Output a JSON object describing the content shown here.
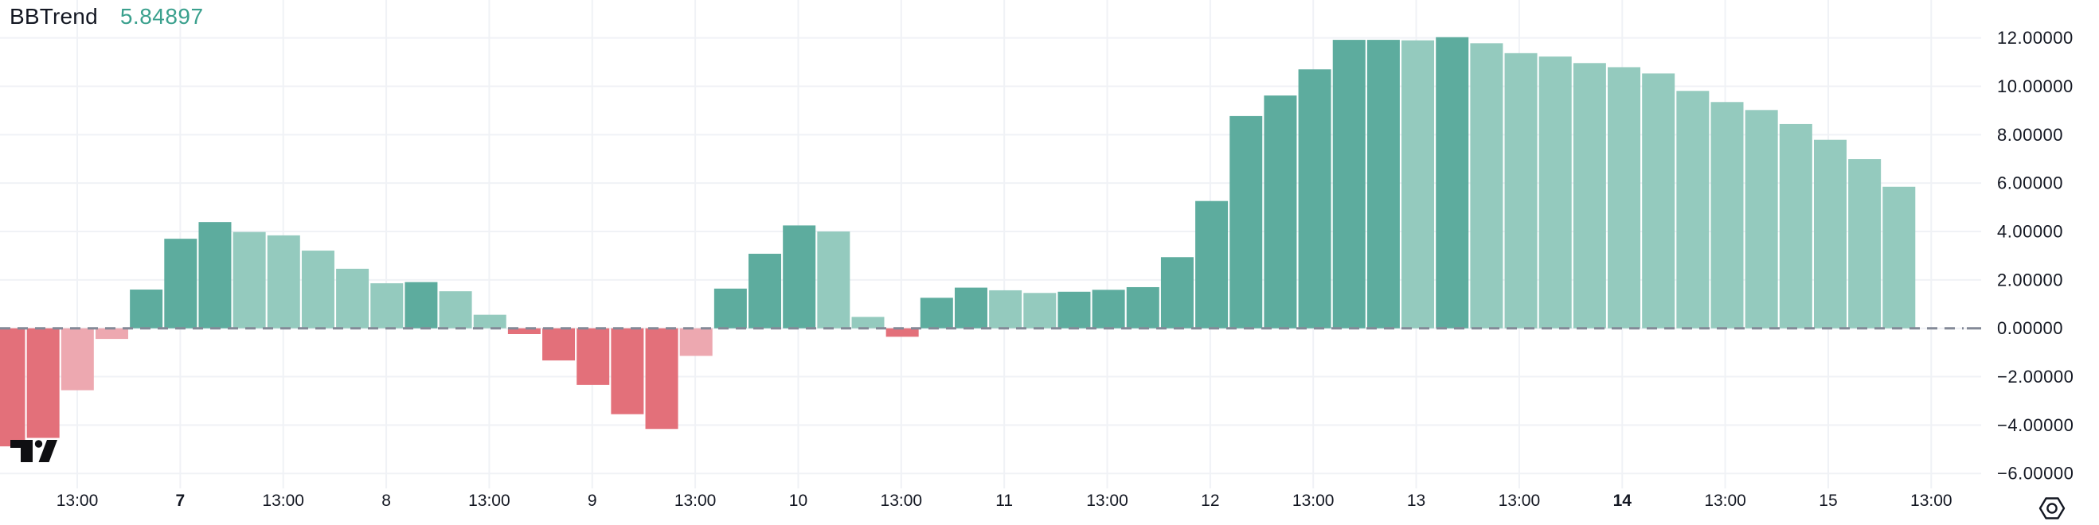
{
  "indicator": {
    "name": "BBTrend",
    "value": "5.84897"
  },
  "colors": {
    "positive": "#5dac9e",
    "positive_light": "#94cabe",
    "negative": "#e3707a",
    "negative_light": "#eda8b0",
    "text": "#131722",
    "value_text": "#3aa08d",
    "grid": "#f0f2f6",
    "zero_line": "#838997",
    "logo": "#0f0f12"
  },
  "chart_data": {
    "type": "bar",
    "title": "BBTrend",
    "current_value": 5.84897,
    "ylabel": "",
    "xlabel": "",
    "ylim": [
      -7.1,
      13.6
    ],
    "grid": true,
    "zero_line_style": "dashed",
    "y_ticks": [
      12,
      10,
      8,
      6,
      4,
      2,
      0,
      -2,
      -4,
      -6
    ],
    "y_tick_labels": [
      "12.00000",
      "10.00000",
      "8.00000",
      "6.00000",
      "4.00000",
      "2.00000",
      "0.00000",
      "−2.00000",
      "−4.00000",
      "−6.00000"
    ],
    "x_tick_labels": [
      {
        "label": "13:00",
        "bold": false
      },
      {
        "label": "7",
        "bold": true
      },
      {
        "label": "13:00",
        "bold": false
      },
      {
        "label": "8",
        "bold": false
      },
      {
        "label": "13:00",
        "bold": false
      },
      {
        "label": "9",
        "bold": false
      },
      {
        "label": "13:00",
        "bold": false
      },
      {
        "label": "10",
        "bold": false
      },
      {
        "label": "13:00",
        "bold": false
      },
      {
        "label": "11",
        "bold": false
      },
      {
        "label": "13:00",
        "bold": false
      },
      {
        "label": "12",
        "bold": false
      },
      {
        "label": "13:00",
        "bold": false
      },
      {
        "label": "13",
        "bold": false
      },
      {
        "label": "13:00",
        "bold": false
      },
      {
        "label": "14",
        "bold": true
      },
      {
        "label": "13:00",
        "bold": false
      },
      {
        "label": "15",
        "bold": false
      },
      {
        "label": "13:00",
        "bold": false
      }
    ],
    "bars": [
      {
        "v": -4.88,
        "c": "negative"
      },
      {
        "v": -4.53,
        "c": "negative"
      },
      {
        "v": -2.56,
        "c": "negative_light"
      },
      {
        "v": -0.44,
        "c": "negative_light"
      },
      {
        "v": 1.6,
        "c": "positive"
      },
      {
        "v": 3.7,
        "c": "positive"
      },
      {
        "v": 4.39,
        "c": "positive"
      },
      {
        "v": 3.98,
        "c": "positive_light"
      },
      {
        "v": 3.84,
        "c": "positive_light"
      },
      {
        "v": 3.21,
        "c": "positive_light"
      },
      {
        "v": 2.46,
        "c": "positive_light"
      },
      {
        "v": 1.86,
        "c": "positive_light"
      },
      {
        "v": 1.91,
        "c": "positive"
      },
      {
        "v": 1.53,
        "c": "positive_light"
      },
      {
        "v": 0.56,
        "c": "positive_light"
      },
      {
        "v": -0.24,
        "c": "negative"
      },
      {
        "v": -1.33,
        "c": "negative"
      },
      {
        "v": -2.34,
        "c": "negative"
      },
      {
        "v": -3.55,
        "c": "negative"
      },
      {
        "v": -4.16,
        "c": "negative"
      },
      {
        "v": -1.14,
        "c": "negative_light"
      },
      {
        "v": 1.64,
        "c": "positive"
      },
      {
        "v": 3.08,
        "c": "positive"
      },
      {
        "v": 4.25,
        "c": "positive"
      },
      {
        "v": 4.0,
        "c": "positive_light"
      },
      {
        "v": 0.47,
        "c": "positive_light"
      },
      {
        "v": -0.35,
        "c": "negative"
      },
      {
        "v": 1.26,
        "c": "positive"
      },
      {
        "v": 1.68,
        "c": "positive"
      },
      {
        "v": 1.57,
        "c": "positive_light"
      },
      {
        "v": 1.46,
        "c": "positive_light"
      },
      {
        "v": 1.51,
        "c": "positive"
      },
      {
        "v": 1.59,
        "c": "positive"
      },
      {
        "v": 1.7,
        "c": "positive"
      },
      {
        "v": 2.94,
        "c": "positive"
      },
      {
        "v": 5.26,
        "c": "positive"
      },
      {
        "v": 8.77,
        "c": "positive"
      },
      {
        "v": 9.62,
        "c": "positive"
      },
      {
        "v": 10.7,
        "c": "positive"
      },
      {
        "v": 11.92,
        "c": "positive"
      },
      {
        "v": 11.92,
        "c": "positive"
      },
      {
        "v": 11.9,
        "c": "positive_light"
      },
      {
        "v": 12.03,
        "c": "positive"
      },
      {
        "v": 11.78,
        "c": "positive_light"
      },
      {
        "v": 11.37,
        "c": "positive_light"
      },
      {
        "v": 11.23,
        "c": "positive_light"
      },
      {
        "v": 10.96,
        "c": "positive_light"
      },
      {
        "v": 10.79,
        "c": "positive_light"
      },
      {
        "v": 10.53,
        "c": "positive_light"
      },
      {
        "v": 9.81,
        "c": "positive_light"
      },
      {
        "v": 9.35,
        "c": "positive_light"
      },
      {
        "v": 9.02,
        "c": "positive_light"
      },
      {
        "v": 8.44,
        "c": "positive_light"
      },
      {
        "v": 7.79,
        "c": "positive_light"
      },
      {
        "v": 6.99,
        "c": "positive_light"
      },
      {
        "v": 5.84897,
        "c": "positive_light"
      }
    ]
  }
}
